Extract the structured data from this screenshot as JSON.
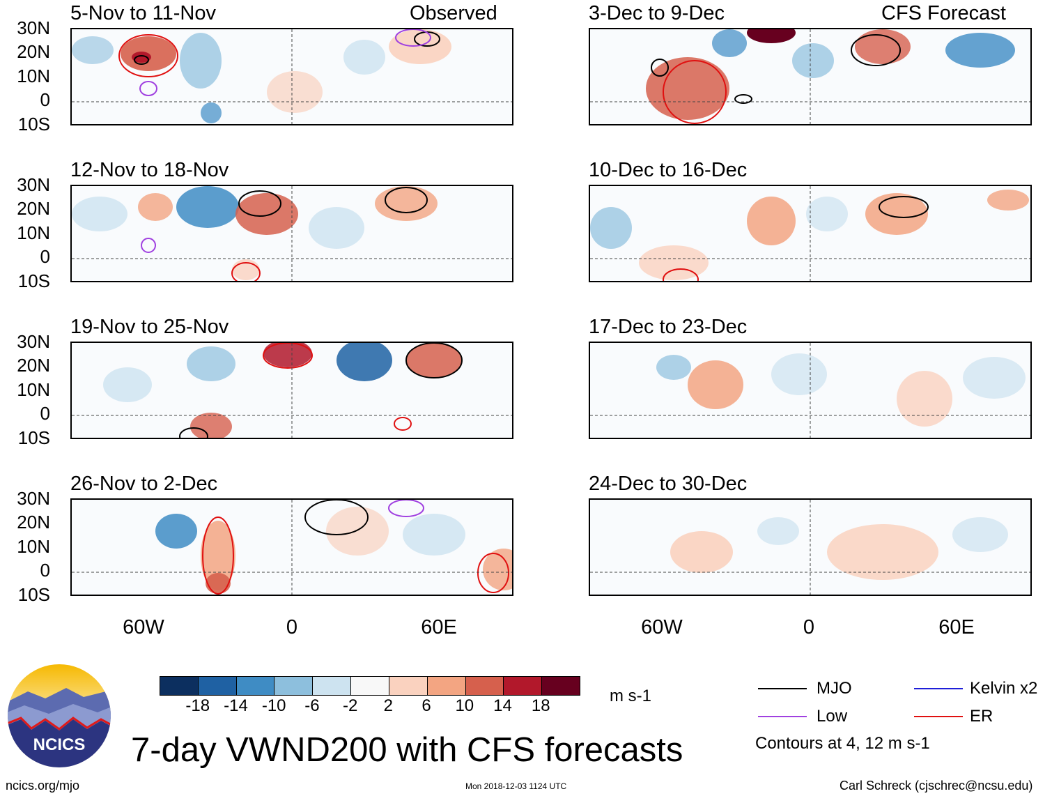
{
  "header": {
    "left_label": "Observed",
    "right_label": "CFS Forecast"
  },
  "panels_left": [
    "5-Nov to 11-Nov",
    "12-Nov to 18-Nov",
    "19-Nov to 25-Nov",
    "26-Nov to 2-Dec"
  ],
  "panels_right": [
    "3-Dec to 9-Dec",
    "10-Dec to 16-Dec",
    "17-Dec to 23-Dec",
    "24-Dec to 30-Dec"
  ],
  "lat_labels": [
    "30N",
    "20N",
    "10N",
    "0",
    "10S"
  ],
  "lon_labels": [
    "60W",
    "0",
    "60E"
  ],
  "colorbar": {
    "ticks": [
      "-18",
      "-14",
      "-10",
      "-6",
      "-2",
      "2",
      "6",
      "10",
      "14",
      "18"
    ],
    "colors": [
      "#0c2f5f",
      "#1f61a3",
      "#3f8cc4",
      "#8dbfdd",
      "#cde3f0",
      "#f8f8f8",
      "#fad2bf",
      "#f3a582",
      "#d6604d",
      "#b2182b",
      "#67001f"
    ],
    "units": "m s-1"
  },
  "legend": {
    "items": [
      {
        "label": "MJO",
        "color": "#000000"
      },
      {
        "label": "Kelvin x2",
        "color": "#1f1fd8"
      },
      {
        "label": "Low",
        "color": "#a040e0"
      },
      {
        "label": "ER",
        "color": "#e01010"
      }
    ],
    "note": "Contours at 4, 12 m s-1"
  },
  "logo_text": "NCICS",
  "title": "7-day VWND200 with CFS forecasts",
  "footer": {
    "left": "ncics.org/mjo",
    "center": "Mon 2018-12-03 1124 UTC",
    "right": "Carl Schreck (cjschrec@ncsu.edu)"
  }
}
